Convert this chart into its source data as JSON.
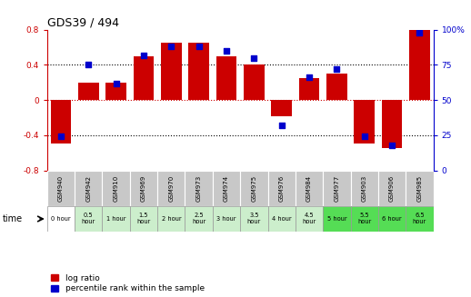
{
  "title": "GDS39 / 494",
  "samples": [
    "GSM940",
    "GSM942",
    "GSM910",
    "GSM969",
    "GSM970",
    "GSM973",
    "GSM974",
    "GSM975",
    "GSM976",
    "GSM984",
    "GSM977",
    "GSM903",
    "GSM906",
    "GSM985"
  ],
  "time_labels": [
    "0 hour",
    "0.5\nhour",
    "1 hour",
    "1.5\nhour",
    "2 hour",
    "2.5\nhour",
    "3 hour",
    "3.5\nhour",
    "4 hour",
    "4.5\nhour",
    "5 hour",
    "5.5\nhour",
    "6 hour",
    "6.5\nhour"
  ],
  "log_ratio": [
    -0.5,
    0.2,
    0.2,
    0.5,
    0.65,
    0.65,
    0.5,
    0.4,
    -0.18,
    0.25,
    0.3,
    -0.5,
    -0.55,
    0.8
  ],
  "percentile": [
    24,
    75,
    62,
    82,
    88,
    88,
    85,
    80,
    32,
    66,
    72,
    24,
    18,
    98
  ],
  "ylim": [
    -0.8,
    0.8
  ],
  "percentile_ylim": [
    0,
    100
  ],
  "bar_color": "#cc0000",
  "dot_color": "#0000cc",
  "bg_color": "#ffffff",
  "red_dotted_color": "#cc0000",
  "yticks_left": [
    -0.8,
    -0.4,
    0.0,
    0.4,
    0.8
  ],
  "yticks_right": [
    0,
    25,
    50,
    75,
    100
  ],
  "cell_colors_time": [
    "#ffffff",
    "#cceecc",
    "#cceecc",
    "#cceecc",
    "#cceecc",
    "#cceecc",
    "#cceecc",
    "#cceecc",
    "#cceecc",
    "#cceecc",
    "#55dd55",
    "#55dd55",
    "#55dd55",
    "#55dd55"
  ]
}
